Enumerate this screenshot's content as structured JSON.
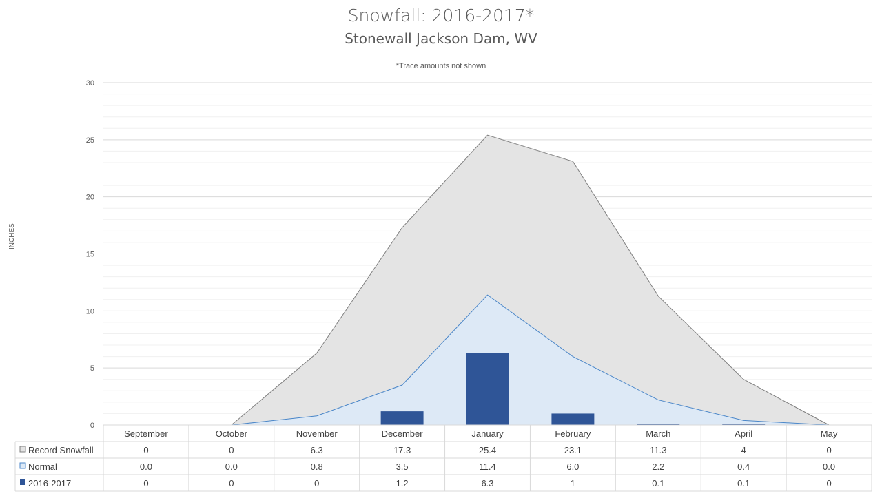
{
  "chart_data": {
    "type": "area",
    "title": "Snowfall: 2016-2017*",
    "subtitle": "Stonewall Jackson Dam, WV",
    "note": "*Trace amounts not shown",
    "ylabel": "INCHES",
    "xlabel": "",
    "ylim": [
      0,
      30
    ],
    "yticks": [
      "0",
      "5",
      "10",
      "15",
      "20",
      "25",
      "30"
    ],
    "grid": true,
    "categories": [
      "September",
      "October",
      "November",
      "December",
      "January",
      "February",
      "March",
      "April",
      "May"
    ],
    "series": [
      {
        "name": "Record Snowfall",
        "kind": "area",
        "color": "#e4e4e4",
        "line": "#7f7f7f",
        "values": [
          0,
          0,
          6.3,
          17.3,
          25.4,
          23.1,
          11.3,
          4,
          0
        ],
        "labels": [
          "0",
          "0",
          "6.3",
          "17.3",
          "25.4",
          "23.1",
          "11.3",
          "4",
          "0"
        ]
      },
      {
        "name": "Normal",
        "kind": "area",
        "color": "#dde9f6",
        "line": "#4a86c8",
        "values": [
          0.0,
          0.0,
          0.8,
          3.5,
          11.4,
          6.0,
          2.2,
          0.4,
          0.0
        ],
        "labels": [
          "0.0",
          "0.0",
          "0.8",
          "3.5",
          "11.4",
          "6.0",
          "2.2",
          "0.4",
          "0.0"
        ]
      },
      {
        "name": "2016-2017",
        "kind": "bar",
        "color": "#2f5597",
        "values": [
          0,
          0,
          0,
          1.2,
          6.3,
          1,
          0.1,
          0.1,
          0
        ],
        "labels": [
          "0",
          "0",
          "0",
          "1.2",
          "6.3",
          "1",
          "0.1",
          "0.1",
          "0"
        ]
      }
    ]
  }
}
